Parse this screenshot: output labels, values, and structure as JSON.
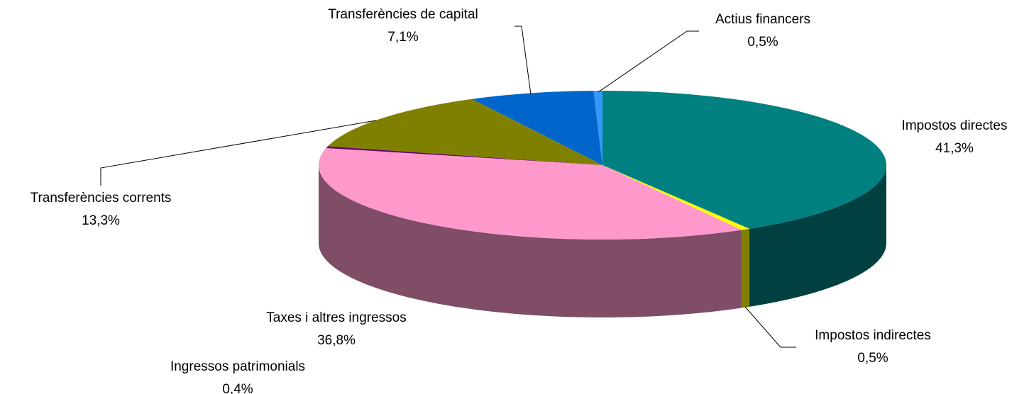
{
  "chart_data": {
    "type": "pie3d",
    "categories": [
      "Impostos directes",
      "Impostos indirectes",
      "Taxes i altres ingressos",
      "Ingressos patrimonials",
      "Transferències corrents",
      "Transferències de capital",
      "Actius financers"
    ],
    "values": [
      41.3,
      0.5,
      36.8,
      0.4,
      13.3,
      7.1,
      0.5
    ],
    "value_labels": [
      "41,3%",
      "0,5%",
      "36,8%",
      "0,4%",
      "13,3%",
      "7,1%",
      "0,5%"
    ],
    "colors": [
      "#008080",
      "#ffff00",
      "#ff99cc",
      "#660066",
      "#808000",
      "#0066cc",
      "#3399ff"
    ]
  }
}
